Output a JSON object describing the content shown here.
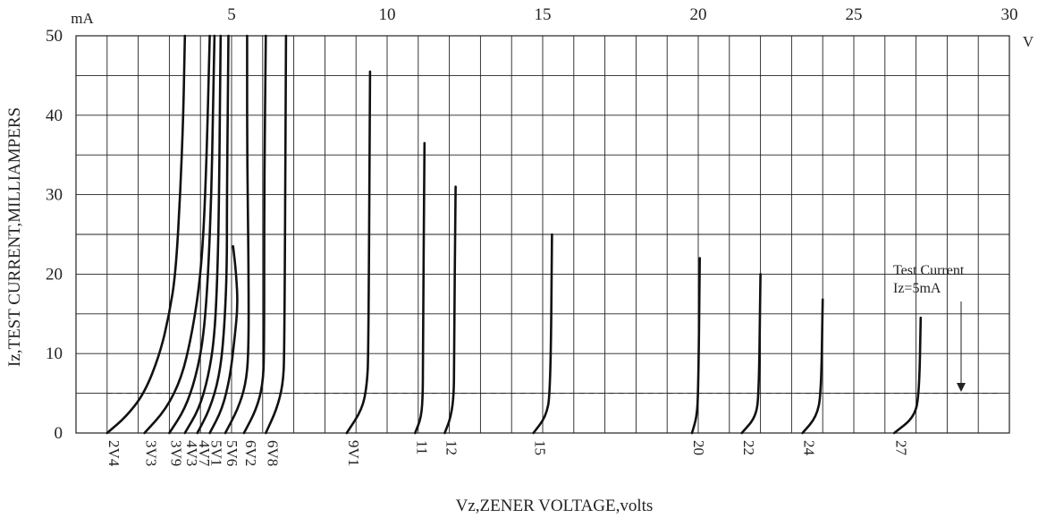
{
  "chart_data": {
    "type": "line",
    "title": "",
    "xlabel": "Vz,ZENER VOLTAGE,volts",
    "ylabel": "Iz,TEST CURRENT,MILLIAMPERS",
    "x_unit": "V",
    "y_unit": "mA",
    "xlim": [
      0,
      30
    ],
    "ylim": [
      0,
      50
    ],
    "x_ticks": [
      5,
      10,
      15,
      20,
      25,
      30
    ],
    "y_ticks": [
      0,
      10,
      20,
      30,
      40,
      50
    ],
    "grid": true,
    "annotation": {
      "line1": "Test Current",
      "line2": "Iz=5mA",
      "reference_current": 5
    },
    "series": [
      {
        "name": "2V4",
        "points": [
          [
            1.0,
            0
          ],
          [
            1.6,
            2
          ],
          [
            2.2,
            5
          ],
          [
            2.7,
            10
          ],
          [
            3.0,
            15
          ],
          [
            3.2,
            20
          ],
          [
            3.35,
            30
          ],
          [
            3.45,
            40
          ],
          [
            3.5,
            50
          ]
        ]
      },
      {
        "name": "3V3",
        "points": [
          [
            2.2,
            0
          ],
          [
            2.9,
            3
          ],
          [
            3.4,
            7
          ],
          [
            3.7,
            12
          ],
          [
            3.95,
            18
          ],
          [
            4.1,
            25
          ],
          [
            4.2,
            35
          ],
          [
            4.3,
            50
          ]
        ]
      },
      {
        "name": "3V9",
        "points": [
          [
            3.0,
            0
          ],
          [
            3.5,
            3
          ],
          [
            3.85,
            7
          ],
          [
            4.1,
            12
          ],
          [
            4.25,
            20
          ],
          [
            4.35,
            30
          ],
          [
            4.4,
            40
          ],
          [
            4.45,
            50
          ]
        ]
      },
      {
        "name": "4V3",
        "points": [
          [
            3.5,
            0
          ],
          [
            3.95,
            3
          ],
          [
            4.25,
            7
          ],
          [
            4.45,
            12
          ],
          [
            4.55,
            20
          ],
          [
            4.6,
            30
          ],
          [
            4.65,
            50
          ]
        ]
      },
      {
        "name": "4V7",
        "points": [
          [
            3.9,
            0
          ],
          [
            4.3,
            3
          ],
          [
            4.6,
            7
          ],
          [
            4.75,
            12
          ],
          [
            4.85,
            20
          ],
          [
            4.85,
            30
          ],
          [
            4.9,
            50
          ]
        ]
      },
      {
        "name": "5V1",
        "points": [
          [
            4.3,
            0
          ],
          [
            4.7,
            3
          ],
          [
            4.95,
            7
          ],
          [
            5.1,
            12
          ],
          [
            5.2,
            16
          ],
          [
            5.15,
            20
          ],
          [
            5.05,
            23.5
          ]
        ]
      },
      {
        "name": "5V6",
        "points": [
          [
            4.8,
            0
          ],
          [
            5.2,
            3
          ],
          [
            5.45,
            6
          ],
          [
            5.55,
            10
          ],
          [
            5.55,
            20
          ],
          [
            5.5,
            35
          ],
          [
            5.5,
            50
          ]
        ]
      },
      {
        "name": "6V2",
        "points": [
          [
            5.4,
            0
          ],
          [
            5.8,
            3
          ],
          [
            6.0,
            6
          ],
          [
            6.05,
            10
          ],
          [
            6.05,
            30
          ],
          [
            6.1,
            50
          ]
        ]
      },
      {
        "name": "6V8",
        "points": [
          [
            6.1,
            0
          ],
          [
            6.45,
            3
          ],
          [
            6.65,
            6
          ],
          [
            6.7,
            10
          ],
          [
            6.75,
            50
          ]
        ]
      },
      {
        "name": "9V1",
        "points": [
          [
            8.7,
            0
          ],
          [
            9.2,
            3
          ],
          [
            9.35,
            6
          ],
          [
            9.4,
            10
          ],
          [
            9.45,
            45.5
          ]
        ]
      },
      {
        "name": "11",
        "points": [
          [
            10.9,
            0
          ],
          [
            11.1,
            2
          ],
          [
            11.15,
            5
          ],
          [
            11.15,
            10
          ],
          [
            11.2,
            36.5
          ]
        ]
      },
      {
        "name": "12",
        "points": [
          [
            11.85,
            0
          ],
          [
            12.05,
            2
          ],
          [
            12.15,
            5
          ],
          [
            12.15,
            10
          ],
          [
            12.2,
            31
          ]
        ]
      },
      {
        "name": "15",
        "points": [
          [
            14.7,
            0
          ],
          [
            15.1,
            2
          ],
          [
            15.25,
            5
          ],
          [
            15.3,
            25
          ]
        ]
      },
      {
        "name": "20",
        "points": [
          [
            19.8,
            0
          ],
          [
            19.95,
            2
          ],
          [
            20.0,
            5
          ],
          [
            20.05,
            22
          ]
        ]
      },
      {
        "name": "22",
        "points": [
          [
            21.4,
            0
          ],
          [
            21.85,
            2
          ],
          [
            21.95,
            5
          ],
          [
            22.0,
            20
          ]
        ]
      },
      {
        "name": "24",
        "points": [
          [
            23.35,
            0
          ],
          [
            23.8,
            2
          ],
          [
            23.95,
            5
          ],
          [
            24.0,
            16.8
          ]
        ]
      },
      {
        "name": "27",
        "points": [
          [
            26.3,
            0
          ],
          [
            26.95,
            2
          ],
          [
            27.1,
            5
          ],
          [
            27.15,
            14.5
          ]
        ]
      }
    ]
  }
}
